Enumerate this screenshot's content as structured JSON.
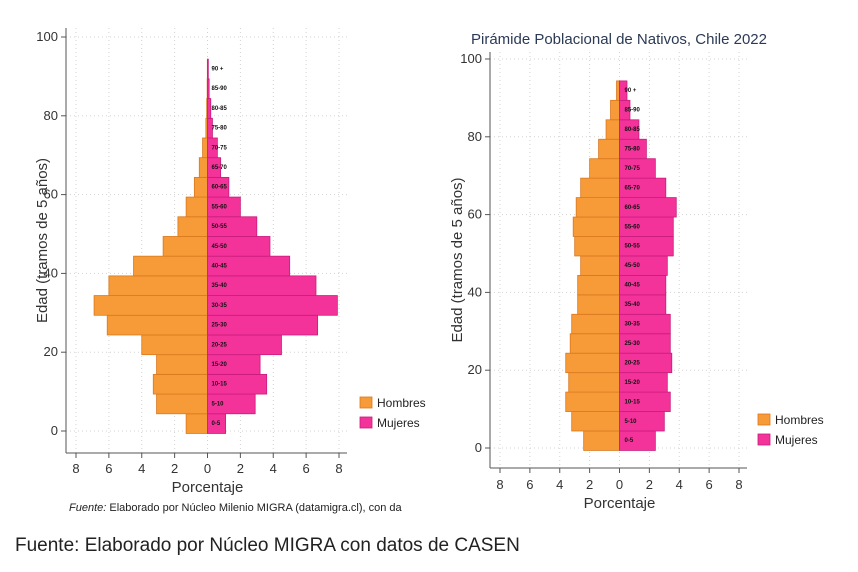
{
  "colors": {
    "hombres": "#F79A38",
    "mujeres": "#F4339A",
    "hombres_edge": "#D9791F",
    "mujeres_edge": "#C81B7C",
    "grid": "#d3d3d3"
  },
  "age_groups": [
    "0-5",
    "5-10",
    "10-15",
    "15-20",
    "20-25",
    "25-30",
    "30-35",
    "35-40",
    "40-45",
    "45-50",
    "50-55",
    "55-60",
    "60-65",
    "65-70",
    "70-75",
    "75-80",
    "80-85",
    "85-90",
    "90 +"
  ],
  "chart_data": [
    {
      "type": "bar",
      "orientation": "horizontal",
      "title": "",
      "xlabel": "Porcentaje",
      "ylabel": "Edad (tramos de 5 años)",
      "xticks": [
        8,
        6,
        4,
        2,
        0,
        2,
        4,
        6,
        8
      ],
      "yticks": [
        0,
        20,
        40,
        60,
        80,
        100
      ],
      "xlim": [
        -8,
        8
      ],
      "ylim": [
        0,
        100
      ],
      "grid": true,
      "legend_position": "bottom-right",
      "series": [
        {
          "name": "Hombres",
          "values": [
            1.3,
            3.1,
            3.3,
            3.1,
            4.0,
            6.1,
            6.9,
            6.0,
            4.5,
            2.7,
            1.8,
            1.3,
            0.8,
            0.5,
            0.3,
            0.1,
            0.05,
            0.02,
            0.01
          ]
        },
        {
          "name": "Mujeres",
          "values": [
            1.1,
            2.9,
            3.6,
            3.2,
            4.5,
            6.7,
            7.9,
            6.6,
            5.0,
            3.8,
            3.0,
            2.0,
            1.3,
            0.8,
            0.6,
            0.3,
            0.2,
            0.1,
            0.05
          ]
        }
      ],
      "source_note_prefix": "Fuente:",
      "source_note_text": "Elaborado por Núcleo Milenio MIGRA (datamigra.cl), con da"
    },
    {
      "type": "bar",
      "orientation": "horizontal",
      "title": "Pirámide Poblacional de Nativos, Chile 2022",
      "xlabel": "Porcentaje",
      "ylabel": "Edad (tramos de 5 años)",
      "xticks": [
        8,
        6,
        4,
        2,
        0,
        2,
        4,
        6,
        8
      ],
      "yticks": [
        0,
        20,
        40,
        60,
        80,
        100
      ],
      "xlim": [
        -8,
        8
      ],
      "ylim": [
        0,
        100
      ],
      "grid": true,
      "legend_position": "bottom-right",
      "series": [
        {
          "name": "Hombres",
          "values": [
            2.4,
            3.2,
            3.6,
            3.4,
            3.6,
            3.3,
            3.2,
            2.8,
            2.8,
            2.6,
            3.0,
            3.1,
            2.9,
            2.6,
            2.0,
            1.4,
            0.9,
            0.6,
            0.2
          ]
        },
        {
          "name": "Mujeres",
          "values": [
            2.4,
            3.0,
            3.4,
            3.2,
            3.5,
            3.4,
            3.4,
            3.1,
            3.1,
            3.2,
            3.6,
            3.6,
            3.8,
            3.1,
            2.4,
            1.8,
            1.3,
            0.7,
            0.5
          ]
        }
      ]
    }
  ],
  "caption": "Fuente: Elaborado por Núcleo MIGRA con datos de CASEN"
}
